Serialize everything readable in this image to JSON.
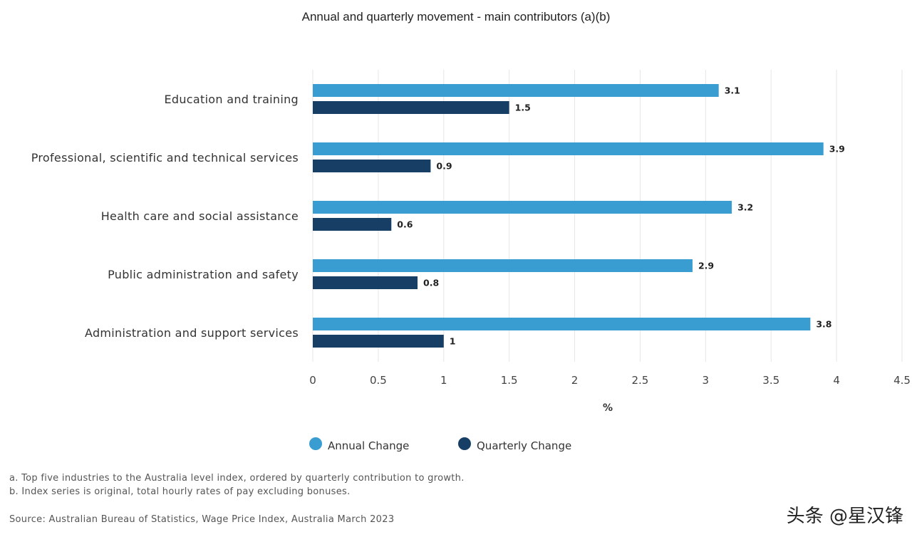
{
  "chart_data": {
    "type": "bar",
    "orientation": "horizontal",
    "title": "Annual and quarterly movement - main contributors (a)(b)",
    "categories": [
      "Education and training",
      "Professional, scientific and technical services",
      "Health care and social assistance",
      "Public administration and safety",
      "Administration and support services"
    ],
    "series": [
      {
        "name": "Annual Change",
        "color": "#3a9dd1",
        "values": [
          3.1,
          3.9,
          3.2,
          2.9,
          3.8
        ],
        "labels": [
          "3.1",
          "3.9",
          "3.2",
          "2.9",
          "3.8"
        ]
      },
      {
        "name": "Quarterly Change",
        "color": "#173f66",
        "values": [
          1.5,
          0.9,
          0.6,
          0.8,
          1
        ],
        "labels": [
          "1.5",
          "0.9",
          "0.6",
          "0.8",
          "1"
        ]
      }
    ],
    "xlabel": "%",
    "xlim": [
      0,
      4.5
    ],
    "xticks": [
      "0",
      "0.5",
      "1",
      "1.5",
      "2",
      "2.5",
      "3",
      "3.5",
      "4",
      "4.5"
    ],
    "grid": "vertical",
    "legend_position": "bottom"
  },
  "notes": {
    "a": "a. Top five industries to the Australia level index, ordered by quarterly contribution to growth.",
    "b": "b. Index series is original, total hourly rates of pay excluding bonuses.",
    "source": "Source: Australian Bureau of Statistics, Wage Price Index, Australia March 2023"
  },
  "watermark": "头条 @星汉锋"
}
